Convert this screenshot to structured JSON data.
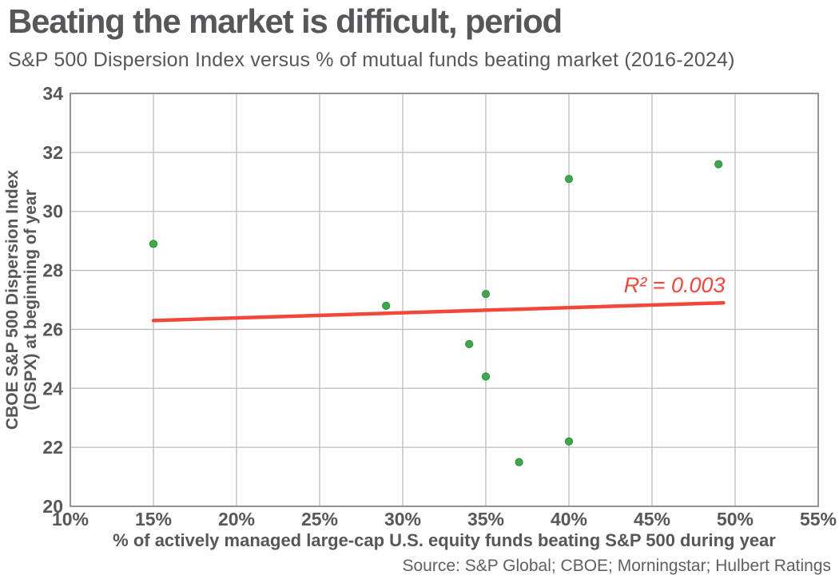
{
  "header": {
    "title": "Beating the market is difficult, period",
    "subtitle": "S&P 500 Dispersion Index versus % of mutual funds beating market (2016-2024)"
  },
  "footer": {
    "xlabel": "% of actively managed large-cap U.S. equity funds beating S&P 500 during year",
    "source": "Source: S&P Global; CBOE; Morningstar; Hulbert Ratings"
  },
  "colors": {
    "text": "#55575a",
    "grid": "#bcbdbf",
    "plot_border": "#919396",
    "point_green": "#3fa64a",
    "point_rim_green": "#2f8f3d",
    "trend_red": "#f0493c"
  },
  "chart_data": {
    "type": "scatter",
    "title": "Beating the market is difficult, period",
    "subtitle": "S&P 500 Dispersion Index versus % of mutual funds beating market (2016-2024)",
    "xlabel": "% of actively managed large-cap U.S. equity funds beating S&P 500 during year",
    "ylabel": "CBOE S&P 500 Dispersion Index (DSPX) at beginning of year",
    "ylabel_lines": [
      "CBOE S&P 500 Dispersion Index",
      "(DSPX) at beginning of year"
    ],
    "source": "Source: S&P Global; CBOE; Morningstar; Hulbert Ratings",
    "grid": true,
    "legend": "none",
    "xlim": [
      10,
      55
    ],
    "ylim": [
      20,
      34
    ],
    "x_ticks": [
      {
        "value": 10,
        "label": "10%"
      },
      {
        "value": 15,
        "label": "15%"
      },
      {
        "value": 20,
        "label": "20%"
      },
      {
        "value": 25,
        "label": "25%"
      },
      {
        "value": 30,
        "label": "30%"
      },
      {
        "value": 35,
        "label": "35%"
      },
      {
        "value": 40,
        "label": "40%"
      },
      {
        "value": 45,
        "label": "45%"
      },
      {
        "value": 50,
        "label": "50%"
      },
      {
        "value": 55,
        "label": "55%"
      }
    ],
    "y_ticks": [
      {
        "value": 20,
        "label": "20"
      },
      {
        "value": 22,
        "label": "22"
      },
      {
        "value": 24,
        "label": "24"
      },
      {
        "value": 26,
        "label": "26"
      },
      {
        "value": 28,
        "label": "28"
      },
      {
        "value": 30,
        "label": "30"
      },
      {
        "value": 32,
        "label": "32"
      },
      {
        "value": 34,
        "label": "34"
      }
    ],
    "points": [
      {
        "x": 15,
        "y": 28.9
      },
      {
        "x": 29,
        "y": 26.8
      },
      {
        "x": 34,
        "y": 25.5
      },
      {
        "x": 35,
        "y": 27.2
      },
      {
        "x": 35,
        "y": 24.4
      },
      {
        "x": 37,
        "y": 21.5
      },
      {
        "x": 40,
        "y": 31.1
      },
      {
        "x": 40,
        "y": 22.2
      },
      {
        "x": 49,
        "y": 31.6
      }
    ],
    "trendline": {
      "x_start": 15,
      "y_start": 26.3,
      "x_end": 49.3,
      "y_end": 26.9
    },
    "annotation": {
      "text": "R² = 0.003",
      "x": 49.4,
      "y": 27.5
    }
  }
}
